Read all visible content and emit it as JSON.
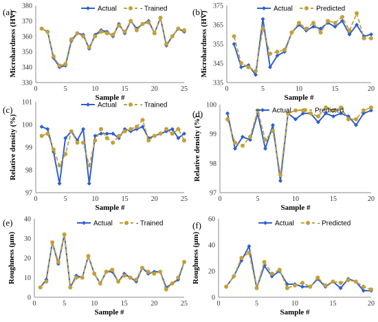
{
  "colors": {
    "actual": "#2e5fcc",
    "predicted": "#c4a03a"
  },
  "chart_data": [
    {
      "id": "a",
      "panel_label": "(a)",
      "type": "line",
      "xlabel": "Sample #",
      "ylabel": "Microhardness (HV)",
      "xlim": [
        0,
        25
      ],
      "ylim": [
        330,
        380
      ],
      "xticks": [
        0,
        5,
        10,
        15,
        20,
        25
      ],
      "yticks": [
        330,
        340,
        350,
        360,
        370,
        380
      ],
      "legend_position": "top-right",
      "series": [
        {
          "name": "Actual",
          "style": "solid-diamond",
          "x": [
            1,
            2,
            3,
            4,
            5,
            6,
            7,
            8,
            9,
            10,
            11,
            12,
            13,
            14,
            15,
            16,
            17,
            18,
            19,
            20,
            21,
            22,
            23,
            24,
            25
          ],
          "values": [
            365,
            363,
            346,
            340,
            341,
            357,
            362,
            361,
            352,
            361,
            364,
            363,
            360,
            368,
            362,
            370,
            365,
            368,
            370,
            362,
            372,
            354,
            360,
            365,
            363
          ]
        },
        {
          "name": "- Trained",
          "style": "dashed-circle",
          "x": [
            1,
            2,
            3,
            4,
            5,
            6,
            7,
            8,
            9,
            10,
            11,
            12,
            13,
            14,
            15,
            16,
            17,
            18,
            19,
            20,
            21,
            22,
            23,
            24,
            25
          ],
          "values": [
            365,
            363,
            347,
            341,
            342,
            358,
            362,
            360,
            353,
            360,
            363,
            362,
            361,
            367,
            363,
            370,
            364,
            368,
            369,
            362,
            372,
            355,
            360,
            365,
            364
          ]
        }
      ]
    },
    {
      "id": "b",
      "panel_label": "(b)",
      "type": "line",
      "xlabel": "Sample #",
      "ylabel": "Microhardness (HV)",
      "xlim": [
        0,
        20
      ],
      "ylim": [
        335,
        375
      ],
      "xticks": [
        0,
        5,
        10,
        15,
        20
      ],
      "yticks": [
        335,
        345,
        355,
        365,
        375
      ],
      "legend_position": "top",
      "series": [
        {
          "name": "Actual",
          "style": "solid-diamond",
          "x": [
            1,
            2,
            3,
            4,
            5,
            6,
            7,
            8,
            9,
            10,
            11,
            12,
            13,
            14,
            15,
            16,
            17,
            18,
            19,
            20
          ],
          "values": [
            355,
            343,
            344,
            339,
            368,
            343,
            349,
            351,
            361,
            365,
            362,
            364,
            363,
            366,
            364,
            367,
            360,
            365,
            359,
            360
          ]
        },
        {
          "name": "Predicted",
          "style": "dashed-circle",
          "x": [
            1,
            2,
            3,
            4,
            5,
            6,
            7,
            8,
            9,
            10,
            11,
            12,
            13,
            14,
            15,
            16,
            17,
            18,
            19,
            20
          ],
          "values": [
            359,
            345,
            343,
            341,
            363,
            350,
            351,
            352,
            361,
            366,
            363,
            366,
            361,
            367,
            366,
            369,
            362,
            371,
            358,
            358
          ]
        }
      ]
    },
    {
      "id": "c",
      "panel_label": "(c)",
      "type": "line",
      "xlabel": "Sample #",
      "ylabel": "Relative density (%)",
      "xlim": [
        0,
        25
      ],
      "ylim": [
        97,
        101
      ],
      "xticks": [
        0,
        5,
        10,
        15,
        20,
        25
      ],
      "yticks": [
        97,
        98,
        99,
        100,
        101
      ],
      "legend_position": "top",
      "series": [
        {
          "name": "Actual",
          "style": "solid-diamond",
          "x": [
            1,
            2,
            3,
            4,
            5,
            6,
            7,
            8,
            9,
            10,
            11,
            12,
            13,
            14,
            15,
            16,
            17,
            18,
            19,
            20,
            21,
            22,
            23,
            24,
            25
          ],
          "values": [
            99.9,
            99.8,
            98.8,
            97.4,
            99.4,
            99.7,
            99.3,
            99.8,
            97.4,
            99.5,
            99.6,
            99.6,
            99.6,
            99.4,
            99.8,
            99.7,
            99.8,
            99.9,
            99.4,
            99.5,
            99.6,
            99.7,
            99.8,
            99.4,
            99.6
          ]
        },
        {
          "name": "- Trained",
          "style": "dashed-circle",
          "x": [
            1,
            2,
            3,
            4,
            5,
            6,
            7,
            8,
            9,
            10,
            11,
            12,
            13,
            14,
            15,
            16,
            17,
            18,
            19,
            20,
            21,
            22,
            23,
            24,
            25
          ],
          "values": [
            99.5,
            99.6,
            98.9,
            98.2,
            98.7,
            99.7,
            99.2,
            99.2,
            98.2,
            99.3,
            99.8,
            99.4,
            99.2,
            99.5,
            99.7,
            99.8,
            99.9,
            100.2,
            99.3,
            99.5,
            99.6,
            99.8,
            99.6,
            99.8,
            99.3
          ]
        }
      ]
    },
    {
      "id": "d",
      "panel_label": "(d)",
      "type": "line",
      "xlabel": "Sample #",
      "ylabel": "Relative density (%)",
      "xlim": [
        0,
        20
      ],
      "ylim": [
        97,
        100
      ],
      "xticks": [
        0,
        5,
        10,
        15,
        20
      ],
      "yticks": [
        97,
        98,
        99,
        100
      ],
      "legend_position": "top",
      "series": [
        {
          "name": "Actual",
          "style": "solid-diamond",
          "x": [
            1,
            2,
            3,
            4,
            5,
            6,
            7,
            8,
            9,
            10,
            11,
            12,
            13,
            14,
            15,
            16,
            17,
            18,
            19,
            20
          ],
          "values": [
            99.7,
            98.5,
            98.9,
            98.8,
            99.7,
            98.5,
            99.3,
            97.4,
            99.7,
            99.5,
            99.7,
            99.7,
            99.4,
            99.7,
            99.6,
            99.7,
            99.6,
            99.3,
            99.7,
            99.8
          ]
        },
        {
          "name": "Predicted",
          "style": "dashed-circle",
          "x": [
            1,
            2,
            3,
            4,
            5,
            6,
            7,
            8,
            9,
            10,
            11,
            12,
            13,
            14,
            15,
            16,
            17,
            18,
            19,
            20
          ],
          "values": [
            99.5,
            98.7,
            98.6,
            98.9,
            99.8,
            98.8,
            99.1,
            97.6,
            99.7,
            99.8,
            99.8,
            99.7,
            99.6,
            99.9,
            99.8,
            99.9,
            99.5,
            99.5,
            99.8,
            99.9
          ]
        }
      ]
    },
    {
      "id": "e",
      "panel_label": "(e)",
      "type": "line",
      "xlabel": "Sample #",
      "ylabel": "Roughness (μm)",
      "xlim": [
        0,
        25
      ],
      "ylim": [
        0,
        40
      ],
      "xticks": [
        0,
        5,
        10,
        15,
        20,
        25
      ],
      "yticks": [
        0,
        10,
        20,
        30,
        40
      ],
      "legend_position": "top",
      "series": [
        {
          "name": "Actual",
          "style": "solid-diamond",
          "x": [
            1,
            2,
            3,
            4,
            5,
            6,
            7,
            8,
            9,
            10,
            11,
            12,
            13,
            14,
            15,
            16,
            17,
            18,
            19,
            20,
            21,
            22,
            23,
            24,
            25
          ],
          "values": [
            5,
            9,
            28,
            17,
            32,
            5,
            11,
            10,
            21,
            12,
            7,
            13,
            13,
            8,
            12,
            10,
            8,
            15,
            12,
            13,
            13,
            5,
            7,
            9,
            18
          ]
        },
        {
          "name": "- Trained",
          "style": "dashed-circle",
          "x": [
            1,
            2,
            3,
            4,
            5,
            6,
            7,
            8,
            9,
            10,
            11,
            12,
            13,
            14,
            15,
            16,
            17,
            18,
            19,
            20,
            21,
            22,
            23,
            24,
            25
          ],
          "values": [
            5,
            8,
            28,
            18,
            32,
            5,
            10,
            10,
            21,
            12,
            7,
            13,
            14,
            8,
            11,
            10,
            9,
            15,
            13,
            12,
            13,
            4,
            7,
            10,
            18
          ]
        }
      ]
    },
    {
      "id": "f",
      "panel_label": "(f)",
      "type": "line",
      "xlabel": "Sample #",
      "ylabel": "Roughness (μm)",
      "xlim": [
        0,
        20
      ],
      "ylim": [
        0,
        60
      ],
      "xticks": [
        0,
        5,
        10,
        15,
        20
      ],
      "yticks": [
        0,
        20,
        40,
        60
      ],
      "legend_position": "top",
      "series": [
        {
          "name": "Actual",
          "style": "solid-diamond",
          "x": [
            1,
            2,
            3,
            4,
            5,
            6,
            7,
            8,
            9,
            10,
            11,
            12,
            13,
            14,
            15,
            16,
            17,
            18,
            19,
            20
          ],
          "values": [
            8,
            16,
            28,
            39,
            7,
            24,
            16,
            20,
            10,
            10,
            8,
            8,
            14,
            8,
            12,
            7,
            14,
            12,
            5,
            5
          ]
        },
        {
          "name": "- Predicted",
          "style": "dashed-circle",
          "x": [
            1,
            2,
            3,
            4,
            5,
            6,
            7,
            8,
            9,
            10,
            11,
            12,
            13,
            14,
            15,
            16,
            17,
            18,
            19,
            20
          ],
          "values": [
            8,
            16,
            30,
            34,
            7,
            27,
            18,
            21,
            7,
            9,
            11,
            8,
            15,
            9,
            12,
            11,
            13,
            12,
            8,
            6
          ]
        }
      ]
    }
  ]
}
